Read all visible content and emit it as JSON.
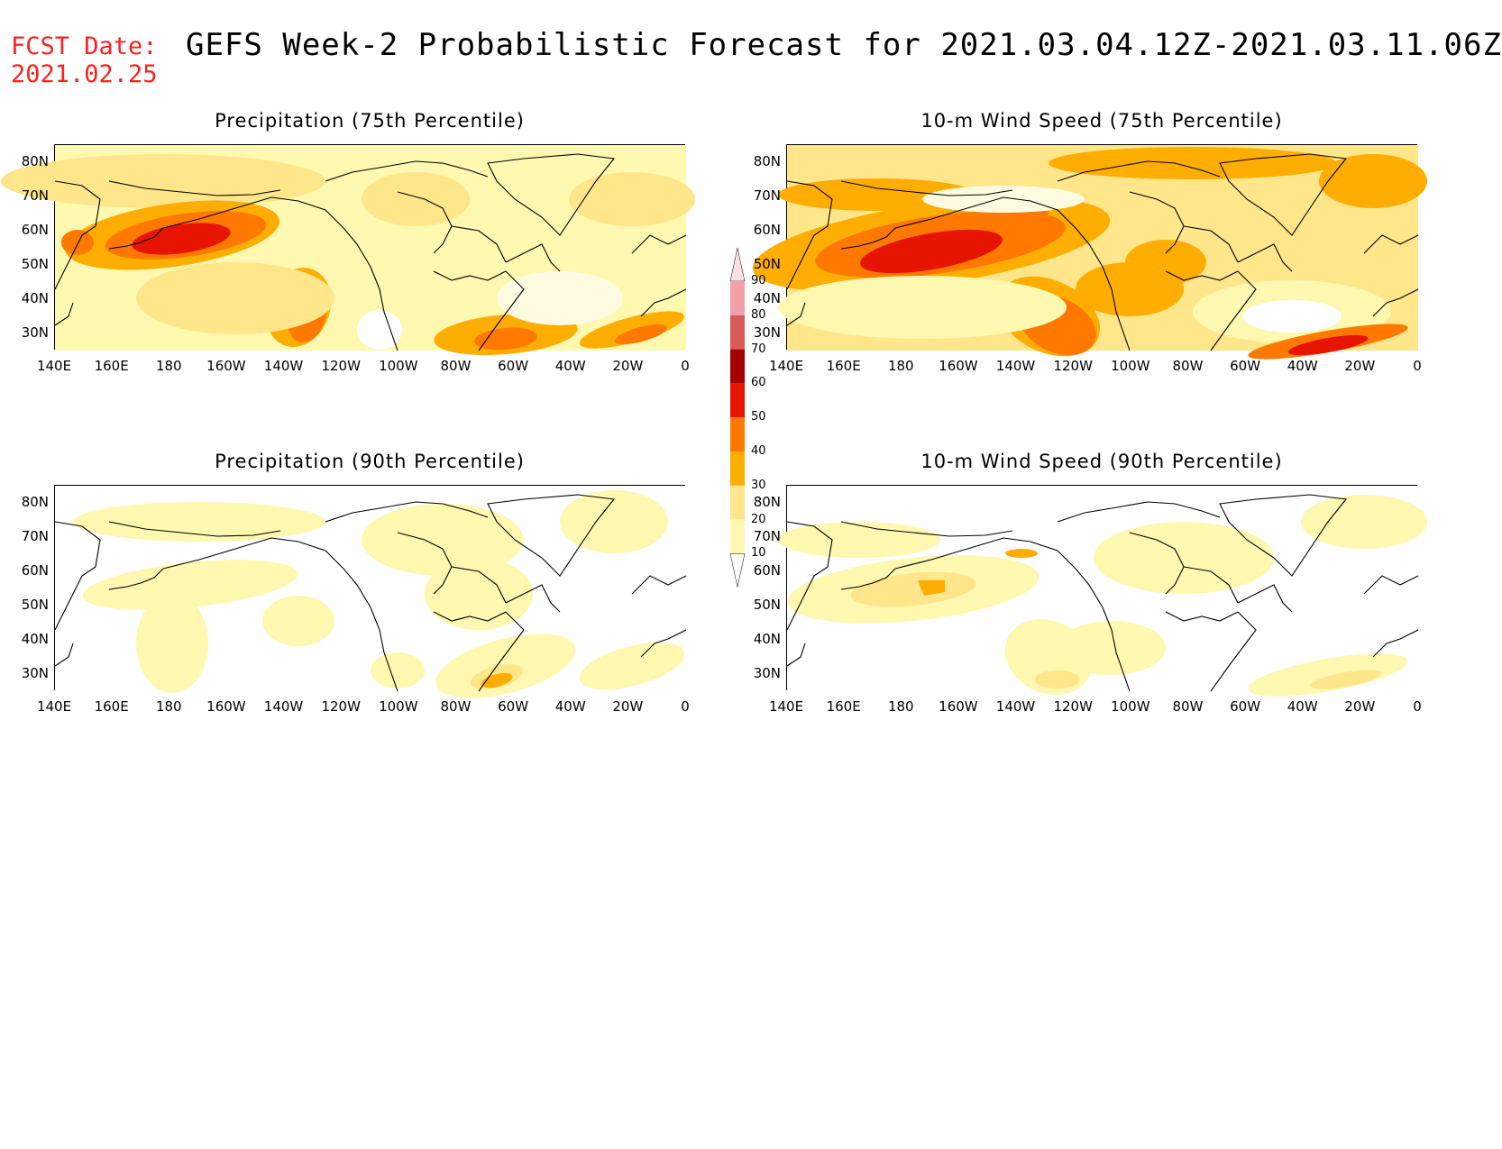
{
  "header": {
    "fcst_label": "FCST Date:",
    "fcst_date": "2021.02.25",
    "title": "GEFS Week-2 Probabilistic Forecast for 2021.03.04.12Z-2021.03.11.06Z"
  },
  "colors": {
    "fcst": "#ff2020",
    "levels": [
      "#ffffff",
      "#fff8b0",
      "#ffe68a",
      "#ffad00",
      "#ff7800",
      "#e61400",
      "#a50000",
      "#d85a5a",
      "#f2a0a8",
      "#fde0e4"
    ]
  },
  "colorbar": {
    "labels": [
      "10",
      "20",
      "30",
      "40",
      "50",
      "60",
      "70",
      "80",
      "90"
    ]
  },
  "axes": {
    "lat_labels": [
      "80N",
      "70N",
      "60N",
      "50N",
      "40N",
      "30N"
    ],
    "lon_labels": [
      "140E",
      "160E",
      "180",
      "160W",
      "140W",
      "120W",
      "100W",
      "80W",
      "60W",
      "40W",
      "20W",
      "0"
    ]
  },
  "panels": [
    {
      "id": "precip75",
      "title": "Precipitation (75th Percentile)"
    },
    {
      "id": "wind75",
      "title": "10-m Wind Speed (75th Percentile)"
    },
    {
      "id": "precip90",
      "title": "Precipitation (90th Percentile)"
    },
    {
      "id": "wind90",
      "title": "10-m Wind Speed (90th Percentile)"
    }
  ]
}
